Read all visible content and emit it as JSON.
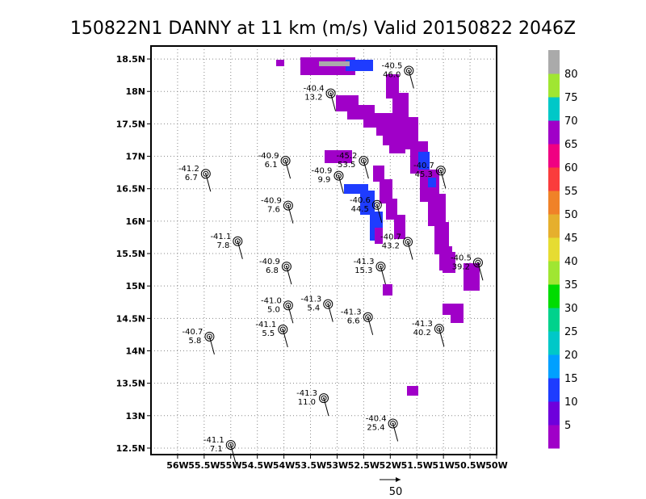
{
  "chart_data": {
    "type": "scatter",
    "title": "150822N1 DANNY at 11 km (m/s) Valid 20150822 2046Z",
    "xlabel": "",
    "ylabel": "",
    "xlim": [
      -56.5,
      -50.0
    ],
    "ylim": [
      12.4,
      18.7
    ],
    "grid": true,
    "x_ticks": [
      {
        "v": -56.0,
        "label": "56W"
      },
      {
        "v": -55.5,
        "label": "55.5W"
      },
      {
        "v": -55.0,
        "label": "55W"
      },
      {
        "v": -54.5,
        "label": "54.5W"
      },
      {
        "v": -54.0,
        "label": "54W"
      },
      {
        "v": -53.5,
        "label": "53.5W"
      },
      {
        "v": -53.0,
        "label": "53W"
      },
      {
        "v": -52.5,
        "label": "52.5W"
      },
      {
        "v": -52.0,
        "label": "52W"
      },
      {
        "v": -51.5,
        "label": "51.5W"
      },
      {
        "v": -51.0,
        "label": "51W"
      },
      {
        "v": -50.5,
        "label": "50.5W"
      },
      {
        "v": -50.0,
        "label": "50W"
      }
    ],
    "y_ticks": [
      {
        "v": 12.5,
        "label": "12.5N"
      },
      {
        "v": 13.0,
        "label": "13N"
      },
      {
        "v": 13.5,
        "label": "13.5N"
      },
      {
        "v": 14.0,
        "label": "14N"
      },
      {
        "v": 14.5,
        "label": "14.5N"
      },
      {
        "v": 15.0,
        "label": "15N"
      },
      {
        "v": 15.5,
        "label": "15.5N"
      },
      {
        "v": 16.0,
        "label": "16N"
      },
      {
        "v": 16.5,
        "label": "16.5N"
      },
      {
        "v": 17.0,
        "label": "17N"
      },
      {
        "v": 17.5,
        "label": "17.5N"
      },
      {
        "v": 18.0,
        "label": "18N"
      },
      {
        "v": 18.5,
        "label": "18.5N"
      }
    ],
    "colorbar": {
      "labels": [
        "5",
        "10",
        "15",
        "20",
        "25",
        "30",
        "35",
        "40",
        "45",
        "50",
        "55",
        "60",
        "65",
        "70",
        "75",
        "80"
      ],
      "colors": [
        "#a000c8",
        "#6e00dc",
        "#1e3cff",
        "#00a0ff",
        "#00c8c8",
        "#00d28c",
        "#00dc00",
        "#a0e632",
        "#e6dc32",
        "#e6af2d",
        "#f08228",
        "#fa3c3c",
        "#f00082",
        "#a000c8",
        "#00c8c8",
        "#a0e632",
        "#aaaaaa"
      ]
    },
    "stations": [
      {
        "lon": -51.65,
        "lat": 18.32,
        "temp": "-40.5",
        "speed": "46.0"
      },
      {
        "lon": -53.12,
        "lat": 17.97,
        "temp": "-40.4",
        "speed": "13.2"
      },
      {
        "lon": -53.97,
        "lat": 16.93,
        "temp": "-40.9",
        "speed": "6.1"
      },
      {
        "lon": -55.47,
        "lat": 16.73,
        "temp": "-41.2",
        "speed": "6.7"
      },
      {
        "lon": -52.5,
        "lat": 16.93,
        "temp": "-45.2",
        "speed": "53.5"
      },
      {
        "lon": -52.97,
        "lat": 16.7,
        "temp": "-40.9",
        "speed": "9.9"
      },
      {
        "lon": -51.05,
        "lat": 16.78,
        "temp": "-40.7",
        "speed": "45.3"
      },
      {
        "lon": -52.25,
        "lat": 16.25,
        "temp": "-40.6",
        "speed": "44.5"
      },
      {
        "lon": -53.92,
        "lat": 16.24,
        "temp": "-40.9",
        "speed": "7.6"
      },
      {
        "lon": -54.87,
        "lat": 15.69,
        "temp": "-41.1",
        "speed": "7.8"
      },
      {
        "lon": -51.67,
        "lat": 15.68,
        "temp": "-40.7",
        "speed": "43.2"
      },
      {
        "lon": -50.35,
        "lat": 15.36,
        "temp": "-40.5",
        "speed": "39.2"
      },
      {
        "lon": -53.95,
        "lat": 15.3,
        "temp": "-40.9",
        "speed": "6.8"
      },
      {
        "lon": -52.18,
        "lat": 15.3,
        "temp": "-41.3",
        "speed": "15.3"
      },
      {
        "lon": -53.92,
        "lat": 14.7,
        "temp": "-41.0",
        "speed": "5.0"
      },
      {
        "lon": -53.17,
        "lat": 14.72,
        "temp": "-41.3",
        "speed": "5.4"
      },
      {
        "lon": -52.42,
        "lat": 14.52,
        "temp": "-41.3",
        "speed": "6.6"
      },
      {
        "lon": -51.08,
        "lat": 14.34,
        "temp": "-41.3",
        "speed": "40.2"
      },
      {
        "lon": -54.02,
        "lat": 14.33,
        "temp": "-41.1",
        "speed": "5.5"
      },
      {
        "lon": -55.4,
        "lat": 14.22,
        "temp": "-40.7",
        "speed": "5.8"
      },
      {
        "lon": -53.25,
        "lat": 13.27,
        "temp": "-41.3",
        "speed": "11.0"
      },
      {
        "lon": -51.95,
        "lat": 12.88,
        "temp": "-40.4",
        "speed": "25.4"
      },
      {
        "lon": -55.0,
        "lat": 12.55,
        "temp": "-41.1",
        "speed": "7.1"
      }
    ],
    "reference_vector": {
      "label": "50"
    }
  }
}
